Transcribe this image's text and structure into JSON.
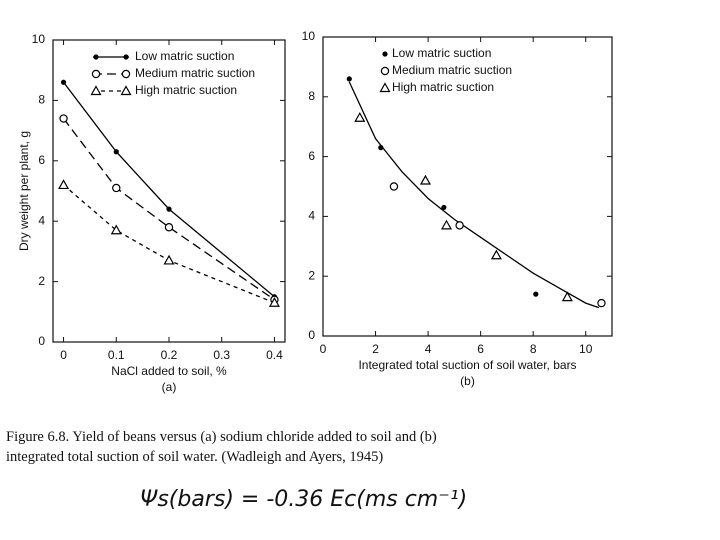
{
  "chart_data": [
    {
      "type": "line",
      "panel": "(a)",
      "x_label": "NaCl added to soil, %",
      "y_label": "Dry weight per plant, g",
      "x": [
        0,
        0.1,
        0.2,
        0.4
      ],
      "series": [
        {
          "name": "Low matric suction",
          "color": "#000000",
          "dash": "solid",
          "marker": "dot",
          "values": [
            8.6,
            6.3,
            4.4,
            1.5
          ]
        },
        {
          "name": "Medium matric suction",
          "color": "#000000",
          "dash": "long",
          "marker": "circle",
          "values": [
            7.4,
            5.1,
            3.8,
            1.4
          ]
        },
        {
          "name": "High matric suction",
          "color": "#000000",
          "dash": "short",
          "marker": "triangle",
          "values": [
            5.2,
            3.7,
            2.7,
            1.3
          ]
        }
      ],
      "xlim": [
        -0.02,
        0.42
      ],
      "xticks": [
        0,
        0.1,
        0.2,
        0.3,
        0.4
      ],
      "ylim": [
        0,
        10
      ],
      "yticks": [
        0,
        2,
        4,
        6,
        8,
        10
      ],
      "grid": false,
      "legend": "top"
    },
    {
      "type": "scatter",
      "panel": "(b)",
      "x_label": "Integrated total suction of soil water, bars",
      "series": [
        {
          "name": "Low matric suction",
          "color": "#000000",
          "marker": "dot",
          "x": [
            1.0,
            2.2,
            4.6,
            8.1
          ],
          "values": [
            8.6,
            6.3,
            4.3,
            1.4
          ]
        },
        {
          "name": "Medium matric suction",
          "color": "#000000",
          "marker": "circle",
          "x": [
            2.7,
            5.2,
            10.6
          ],
          "values": [
            5.0,
            3.7,
            1.1
          ]
        },
        {
          "name": "High matric suction",
          "color": "#000000",
          "marker": "triangle",
          "x": [
            1.4,
            3.9,
            4.7,
            6.6,
            9.3
          ],
          "values": [
            7.3,
            5.2,
            3.7,
            2.7,
            1.3
          ]
        }
      ],
      "curve": {
        "color": "#000000",
        "x": [
          1,
          2,
          3,
          4,
          5,
          6,
          7,
          8,
          9,
          10,
          10.5
        ],
        "values": [
          8.5,
          6.6,
          5.5,
          4.6,
          3.9,
          3.3,
          2.7,
          2.1,
          1.6,
          1.1,
          0.95
        ]
      },
      "xlim": [
        0,
        11
      ],
      "xticks": [
        0,
        2,
        4,
        6,
        8,
        10
      ],
      "ylim": [
        0,
        10
      ],
      "yticks": [
        0,
        2,
        4,
        6,
        8,
        10
      ],
      "grid": false,
      "legend": "top"
    }
  ],
  "caption": "Figure 6.8. Yield of beans versus (a) sodium chloride added to soil and (b) integrated total suction of soil water. (Wadleigh and Ayers, 1945)",
  "handwritten": "Ψs(bars) = -0.36 Ec(ms cm⁻¹)"
}
